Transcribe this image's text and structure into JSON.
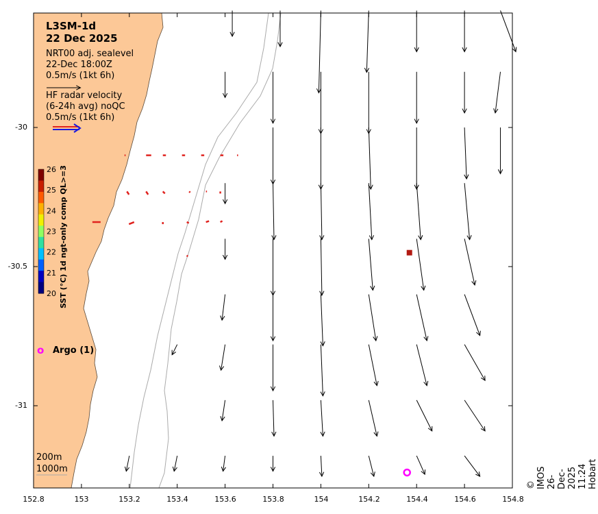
{
  "colors": {
    "land": "#fcc897",
    "vector_black": "#000000",
    "radar": "#e0221e",
    "argo": "#ff00ff",
    "sst_marker": "#b21a12",
    "bathy": "#aaaaaa"
  },
  "header": {
    "title_line1": "L3SM-1d",
    "title_line2": "22 Dec 2025"
  },
  "legend": {
    "sealevel_line1": "NRT00 adj. sealevel",
    "sealevel_line2": "22-Dec 18:00Z",
    "sealevel_scale": "0.5m/s (1kt 6h)",
    "radar_line1": "HF radar velocity",
    "radar_line2": "(6-24h avg) noQC",
    "radar_scale": "0.5m/s (1kt 6h)",
    "argo_symbol": "o",
    "argo_label": "Argo (1)",
    "bathy_200": "200m",
    "bathy_1000": "1000m"
  },
  "colorbar": {
    "title": "SST (°C) 1d ngt-only comp QL>=3",
    "ticks": [
      "26",
      "25",
      "24",
      "23",
      "22",
      "21",
      "20"
    ],
    "colors": [
      "#7f0000",
      "#c81e00",
      "#ff5a00",
      "#ffb000",
      "#f0f000",
      "#90ff60",
      "#30e0a0",
      "#00c0ff",
      "#0060ff",
      "#0000c0",
      "#00007f"
    ]
  },
  "axes": {
    "x_ticks": [
      "152.8",
      "153",
      "153.2",
      "153.4",
      "153.6",
      "153.8",
      "154",
      "154.2",
      "154.4",
      "154.6",
      "154.8"
    ],
    "y_ticks": [
      "-30",
      "-30.5",
      "-31"
    ],
    "x_range": [
      152.8,
      154.8
    ],
    "y_range": [
      -31.3,
      -29.58
    ]
  },
  "credit": "© IMOS 26-Dec-2025 11:24 Hobart",
  "argo_float": {
    "lon": 154.36,
    "lat": -31.24
  },
  "sst_observation": {
    "lon": 154.37,
    "lat": -30.45,
    "sst": 26
  },
  "sealevel_vectors": [
    {
      "lon": 153.83,
      "lat": -29.58,
      "u": 0.0,
      "v": -0.35
    },
    {
      "lon": 154.0,
      "lat": -29.58,
      "u": -0.02,
      "v": -0.8
    },
    {
      "lon": 154.2,
      "lat": -29.58,
      "u": -0.02,
      "v": -0.6
    },
    {
      "lon": 154.4,
      "lat": -29.58,
      "u": 0.0,
      "v": -0.4
    },
    {
      "lon": 154.6,
      "lat": -29.58,
      "u": 0.0,
      "v": -0.4
    },
    {
      "lon": 154.75,
      "lat": -29.58,
      "u": 0.15,
      "v": -0.4
    },
    {
      "lon": 153.63,
      "lat": -29.58,
      "u": 0.0,
      "v": -0.25
    },
    {
      "lon": 153.6,
      "lat": -29.8,
      "u": 0.0,
      "v": -0.25
    },
    {
      "lon": 153.8,
      "lat": -29.8,
      "u": 0.0,
      "v": -0.5
    },
    {
      "lon": 154.0,
      "lat": -29.8,
      "u": 0.0,
      "v": -0.6
    },
    {
      "lon": 154.2,
      "lat": -29.8,
      "u": 0.0,
      "v": -0.6
    },
    {
      "lon": 154.4,
      "lat": -29.8,
      "u": 0.0,
      "v": -0.5
    },
    {
      "lon": 154.6,
      "lat": -29.8,
      "u": 0.0,
      "v": -0.4
    },
    {
      "lon": 154.75,
      "lat": -29.8,
      "u": -0.05,
      "v": -0.4
    },
    {
      "lon": 153.8,
      "lat": -30.0,
      "u": 0.0,
      "v": -0.55
    },
    {
      "lon": 154.0,
      "lat": -30.0,
      "u": 0.0,
      "v": -0.6
    },
    {
      "lon": 154.2,
      "lat": -30.0,
      "u": 0.02,
      "v": -0.6
    },
    {
      "lon": 154.4,
      "lat": -30.0,
      "u": 0.0,
      "v": -0.6
    },
    {
      "lon": 154.6,
      "lat": -30.0,
      "u": 0.02,
      "v": -0.5
    },
    {
      "lon": 154.75,
      "lat": -30.0,
      "u": 0.0,
      "v": -0.45
    },
    {
      "lon": 153.6,
      "lat": -30.2,
      "u": 0.0,
      "v": -0.2
    },
    {
      "lon": 153.8,
      "lat": -30.2,
      "u": 0.01,
      "v": -0.55
    },
    {
      "lon": 154.0,
      "lat": -30.2,
      "u": 0.01,
      "v": -0.55
    },
    {
      "lon": 154.2,
      "lat": -30.2,
      "u": 0.03,
      "v": -0.55
    },
    {
      "lon": 154.4,
      "lat": -30.2,
      "u": 0.04,
      "v": -0.55
    },
    {
      "lon": 154.6,
      "lat": -30.2,
      "u": 0.05,
      "v": -0.55
    },
    {
      "lon": 153.6,
      "lat": -30.4,
      "u": 0.0,
      "v": -0.2
    },
    {
      "lon": 153.8,
      "lat": -30.4,
      "u": 0.0,
      "v": -0.55
    },
    {
      "lon": 154.0,
      "lat": -30.4,
      "u": 0.01,
      "v": -0.55
    },
    {
      "lon": 154.2,
      "lat": -30.4,
      "u": 0.04,
      "v": -0.5
    },
    {
      "lon": 154.4,
      "lat": -30.4,
      "u": 0.07,
      "v": -0.5
    },
    {
      "lon": 154.6,
      "lat": -30.4,
      "u": 0.1,
      "v": -0.45
    },
    {
      "lon": 153.6,
      "lat": -30.6,
      "u": -0.03,
      "v": -0.25
    },
    {
      "lon": 153.8,
      "lat": -30.6,
      "u": 0.0,
      "v": -0.45
    },
    {
      "lon": 154.0,
      "lat": -30.6,
      "u": 0.02,
      "v": -0.5
    },
    {
      "lon": 154.2,
      "lat": -30.6,
      "u": 0.07,
      "v": -0.45
    },
    {
      "lon": 154.4,
      "lat": -30.6,
      "u": 0.1,
      "v": -0.45
    },
    {
      "lon": 154.6,
      "lat": -30.6,
      "u": 0.15,
      "v": -0.4
    },
    {
      "lon": 153.4,
      "lat": -30.78,
      "u": -0.05,
      "v": -0.1
    },
    {
      "lon": 153.6,
      "lat": -30.78,
      "u": -0.04,
      "v": -0.25
    },
    {
      "lon": 153.8,
      "lat": -30.78,
      "u": 0.0,
      "v": -0.45
    },
    {
      "lon": 154.0,
      "lat": -30.78,
      "u": 0.02,
      "v": -0.5
    },
    {
      "lon": 154.2,
      "lat": -30.78,
      "u": 0.08,
      "v": -0.4
    },
    {
      "lon": 154.4,
      "lat": -30.78,
      "u": 0.1,
      "v": -0.4
    },
    {
      "lon": 154.6,
      "lat": -30.78,
      "u": 0.2,
      "v": -0.35
    },
    {
      "lon": 153.6,
      "lat": -30.98,
      "u": -0.03,
      "v": -0.2
    },
    {
      "lon": 153.8,
      "lat": -30.98,
      "u": 0.01,
      "v": -0.35
    },
    {
      "lon": 154.0,
      "lat": -30.98,
      "u": 0.02,
      "v": -0.35
    },
    {
      "lon": 154.2,
      "lat": -30.98,
      "u": 0.08,
      "v": -0.35
    },
    {
      "lon": 154.4,
      "lat": -30.98,
      "u": 0.15,
      "v": -0.3
    },
    {
      "lon": 154.6,
      "lat": -30.98,
      "u": 0.2,
      "v": -0.3
    },
    {
      "lon": 153.2,
      "lat": -31.18,
      "u": -0.03,
      "v": -0.15
    },
    {
      "lon": 153.4,
      "lat": -31.18,
      "u": -0.03,
      "v": -0.15
    },
    {
      "lon": 153.6,
      "lat": -31.18,
      "u": -0.02,
      "v": -0.15
    },
    {
      "lon": 153.8,
      "lat": -31.18,
      "u": 0.0,
      "v": -0.15
    },
    {
      "lon": 154.0,
      "lat": -31.18,
      "u": 0.01,
      "v": -0.2
    },
    {
      "lon": 154.2,
      "lat": -31.18,
      "u": 0.05,
      "v": -0.2
    },
    {
      "lon": 154.4,
      "lat": -31.18,
      "u": 0.08,
      "v": -0.18
    },
    {
      "lon": 154.6,
      "lat": -31.18,
      "u": 0.15,
      "v": -0.2
    }
  ],
  "radar_vectors": [
    {
      "lon": 153.18,
      "lat": -30.1,
      "u": 0.01,
      "v": 0.0
    },
    {
      "lon": 153.27,
      "lat": -30.1,
      "u": 0.05,
      "v": 0.0
    },
    {
      "lon": 153.34,
      "lat": -30.1,
      "u": 0.03,
      "v": 0.0
    },
    {
      "lon": 153.42,
      "lat": -30.1,
      "u": 0.03,
      "v": 0.0
    },
    {
      "lon": 153.5,
      "lat": -30.1,
      "u": 0.03,
      "v": 0.0
    },
    {
      "lon": 153.58,
      "lat": -30.1,
      "u": 0.03,
      "v": 0.0
    },
    {
      "lon": 153.65,
      "lat": -30.1,
      "u": 0.01,
      "v": 0.0
    },
    {
      "lon": 153.19,
      "lat": -30.23,
      "u": 0.02,
      "v": -0.03
    },
    {
      "lon": 153.27,
      "lat": -30.23,
      "u": 0.02,
      "v": -0.03
    },
    {
      "lon": 153.34,
      "lat": -30.23,
      "u": 0.02,
      "v": -0.02
    },
    {
      "lon": 153.45,
      "lat": -30.23,
      "u": 0.01,
      "v": -0.01
    },
    {
      "lon": 153.52,
      "lat": -30.23,
      "u": 0.01,
      "v": 0.0
    },
    {
      "lon": 153.58,
      "lat": -30.23,
      "u": 0.0,
      "v": -0.02
    },
    {
      "lon": 153.08,
      "lat": -30.34,
      "u": -0.08,
      "v": 0.0
    },
    {
      "lon": 153.22,
      "lat": -30.34,
      "u": -0.05,
      "v": -0.02
    },
    {
      "lon": 153.34,
      "lat": -30.34,
      "u": 0.0,
      "v": -0.02
    },
    {
      "lon": 153.44,
      "lat": -30.34,
      "u": 0.02,
      "v": -0.01
    },
    {
      "lon": 153.52,
      "lat": -30.34,
      "u": 0.03,
      "v": 0.01
    },
    {
      "lon": 153.58,
      "lat": -30.34,
      "u": 0.02,
      "v": 0.01
    },
    {
      "lon": 153.44,
      "lat": -30.46,
      "u": 0.01,
      "v": -0.01
    }
  ]
}
